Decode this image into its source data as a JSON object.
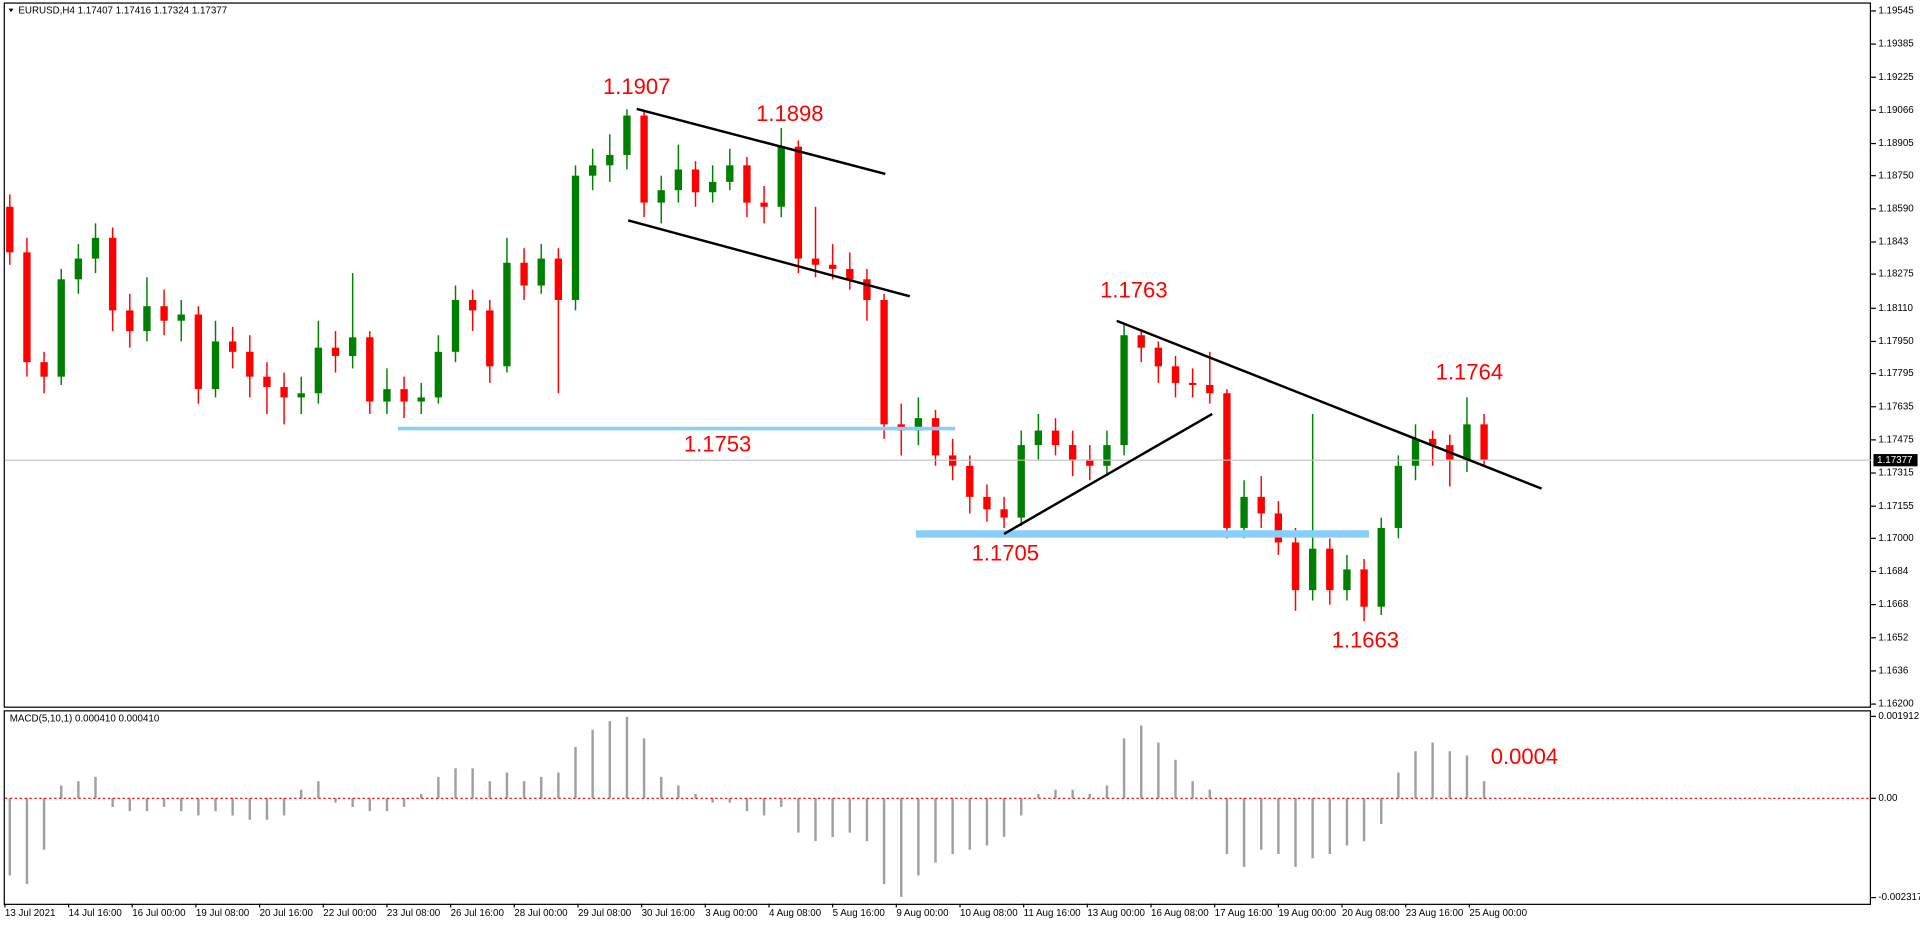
{
  "header": "EURUSD,H4  1.17407 1.17416 1.17324 1.17377",
  "chart_data": [
    {
      "type": "candlestick",
      "up_color": "#008000",
      "down_color": "#ff0000",
      "ylim": [
        1.16188,
        1.19586
      ],
      "yticks": [
        1.19545,
        1.19385,
        1.19225,
        1.19066,
        1.18905,
        {
          "value": 1.1875,
          "label": "1.18750"
        },
        {
          "value": 1.1859,
          "label": "1.18590"
        },
        1.1843,
        1.18275,
        {
          "value": 1.1811,
          "label": "1.18110"
        },
        {
          "value": 1.1795,
          "label": "1.17950"
        },
        1.17795,
        1.17635,
        1.17475,
        1.17315,
        1.17155,
        {
          "value": 1.17,
          "label": "1.17000"
        },
        1.1684,
        1.1668,
        1.1652,
        1.1636,
        {
          "value": 1.162,
          "label": "1.16200"
        }
      ],
      "last_price": 1.17377,
      "annotations": [
        "1.1907",
        "1.1898",
        "1.1753",
        "1.1763",
        "1.1705",
        "1.1764",
        "1.1663"
      ],
      "candles": [
        [
          1.186,
          1.1866,
          1.1832,
          1.1838
        ],
        [
          1.1838,
          1.1845,
          1.1778,
          1.1785
        ],
        [
          1.1785,
          1.179,
          1.177,
          1.1778
        ],
        [
          1.1778,
          1.183,
          1.1774,
          1.1825
        ],
        [
          1.1825,
          1.1842,
          1.1818,
          1.1835
        ],
        [
          1.1835,
          1.1852,
          1.1828,
          1.1845
        ],
        [
          1.1845,
          1.185,
          1.18,
          1.181
        ],
        [
          1.181,
          1.1818,
          1.1792,
          1.18
        ],
        [
          1.18,
          1.1826,
          1.1795,
          1.1812
        ],
        [
          1.1812,
          1.182,
          1.1798,
          1.1805
        ],
        [
          1.1805,
          1.1815,
          1.1795,
          1.1808
        ],
        [
          1.1808,
          1.1812,
          1.1765,
          1.1772
        ],
        [
          1.1772,
          1.1805,
          1.1768,
          1.1795
        ],
        [
          1.1795,
          1.1802,
          1.1782,
          1.179
        ],
        [
          1.179,
          1.1798,
          1.1768,
          1.1778
        ],
        [
          1.1778,
          1.1785,
          1.176,
          1.1773
        ],
        [
          1.1773,
          1.178,
          1.1755,
          1.1768
        ],
        [
          1.1768,
          1.1778,
          1.176,
          1.177
        ],
        [
          1.177,
          1.1805,
          1.1765,
          1.1792
        ],
        [
          1.1792,
          1.18,
          1.178,
          1.1788
        ],
        [
          1.1788,
          1.1828,
          1.1782,
          1.1797
        ],
        [
          1.1797,
          1.18,
          1.176,
          1.1766
        ],
        [
          1.1766,
          1.1782,
          1.176,
          1.1772
        ],
        [
          1.1772,
          1.1778,
          1.1758,
          1.1766
        ],
        [
          1.1766,
          1.1775,
          1.176,
          1.1768
        ],
        [
          1.1768,
          1.1798,
          1.1765,
          1.179
        ],
        [
          1.179,
          1.1822,
          1.1785,
          1.1815
        ],
        [
          1.1815,
          1.182,
          1.18,
          1.181
        ],
        [
          1.181,
          1.1815,
          1.1775,
          1.1783
        ],
        [
          1.1783,
          1.1845,
          1.178,
          1.1833
        ],
        [
          1.1833,
          1.184,
          1.1815,
          1.1822
        ],
        [
          1.1822,
          1.1842,
          1.1818,
          1.1835
        ],
        [
          1.1835,
          1.184,
          1.177,
          1.1815
        ],
        [
          1.1815,
          1.188,
          1.181,
          1.1875
        ],
        [
          1.1875,
          1.1888,
          1.1868,
          1.188
        ],
        [
          1.188,
          1.1895,
          1.1872,
          1.1885
        ],
        [
          1.1885,
          1.1907,
          1.1878,
          1.1904
        ],
        [
          1.1904,
          1.1906,
          1.1855,
          1.1862
        ],
        [
          1.1862,
          1.1875,
          1.1852,
          1.1868
        ],
        [
          1.1868,
          1.189,
          1.1862,
          1.1878
        ],
        [
          1.1878,
          1.1882,
          1.186,
          1.1867
        ],
        [
          1.1867,
          1.188,
          1.1862,
          1.1872
        ],
        [
          1.1872,
          1.1888,
          1.1868,
          1.188
        ],
        [
          1.188,
          1.1884,
          1.1855,
          1.1862
        ],
        [
          1.1862,
          1.187,
          1.1852,
          1.186
        ],
        [
          1.186,
          1.1898,
          1.1855,
          1.1889
        ],
        [
          1.1889,
          1.1892,
          1.1828,
          1.1835
        ],
        [
          1.1835,
          1.186,
          1.1826,
          1.1832
        ],
        [
          1.1832,
          1.1842,
          1.1825,
          1.183
        ],
        [
          1.183,
          1.1838,
          1.182,
          1.1825
        ],
        [
          1.1825,
          1.183,
          1.1805,
          1.1815
        ],
        [
          1.1815,
          1.1818,
          1.1748,
          1.1755
        ],
        [
          1.1755,
          1.1765,
          1.174,
          1.1752
        ],
        [
          1.1752,
          1.1768,
          1.1745,
          1.1758
        ],
        [
          1.1758,
          1.1762,
          1.1735,
          1.174
        ],
        [
          1.174,
          1.1748,
          1.1728,
          1.1735
        ],
        [
          1.1735,
          1.174,
          1.1712,
          1.172
        ],
        [
          1.172,
          1.1726,
          1.1708,
          1.1714
        ],
        [
          1.1714,
          1.172,
          1.1705,
          1.171
        ],
        [
          1.171,
          1.1752,
          1.1706,
          1.1745
        ],
        [
          1.1745,
          1.176,
          1.1738,
          1.1752
        ],
        [
          1.1752,
          1.1758,
          1.174,
          1.1745
        ],
        [
          1.1745,
          1.1752,
          1.173,
          1.1738
        ],
        [
          1.1738,
          1.1745,
          1.1728,
          1.1735
        ],
        [
          1.1735,
          1.1752,
          1.173,
          1.1745
        ],
        [
          1.1745,
          1.1803,
          1.174,
          1.1798
        ],
        [
          1.1798,
          1.18,
          1.1785,
          1.1792
        ],
        [
          1.1792,
          1.1795,
          1.1775,
          1.1783
        ],
        [
          1.1783,
          1.1788,
          1.1768,
          1.1775
        ],
        [
          1.1775,
          1.1782,
          1.1768,
          1.1774
        ],
        [
          1.1774,
          1.179,
          1.1765,
          1.177
        ],
        [
          1.177,
          1.1772,
          1.17,
          1.1705
        ],
        [
          1.1705,
          1.1728,
          1.17,
          1.172
        ],
        [
          1.172,
          1.173,
          1.1705,
          1.1712
        ],
        [
          1.1712,
          1.1718,
          1.1692,
          1.1698
        ],
        [
          1.1698,
          1.1705,
          1.1665,
          1.1675
        ],
        [
          1.1675,
          1.176,
          1.167,
          1.1695
        ],
        [
          1.1695,
          1.17,
          1.1668,
          1.1675
        ],
        [
          1.1675,
          1.1692,
          1.167,
          1.1685
        ],
        [
          1.1685,
          1.169,
          1.166,
          1.1667
        ],
        [
          1.1667,
          1.171,
          1.1663,
          1.1705
        ],
        [
          1.1705,
          1.174,
          1.17,
          1.1735
        ],
        [
          1.1735,
          1.1755,
          1.1728,
          1.1748
        ],
        [
          1.1748,
          1.1752,
          1.1735,
          1.1745
        ],
        [
          1.1745,
          1.175,
          1.1725,
          1.1738
        ],
        [
          1.1738,
          1.1768,
          1.1732,
          1.1755
        ],
        [
          1.1755,
          1.176,
          1.1735,
          1.1738
        ]
      ]
    },
    {
      "type": "bar",
      "title": "MACD(5,10,1) 0.000410 0.000410",
      "color": "#a0a0a0",
      "zero_color": "#ff0000",
      "ylim": [
        -0.00246,
        0.002055
      ],
      "yticks": [
        0.001912,
        {
          "value": 0,
          "label": "0.00"
        },
        -0.002317
      ],
      "annotations": [
        "0.0004"
      ],
      "values": [
        -0.0018,
        -0.002,
        -0.0012,
        0.0003,
        0.0004,
        0.0005,
        -0.0002,
        -0.0003,
        -0.0003,
        -0.0002,
        -0.0003,
        -0.0004,
        -0.0003,
        -0.0004,
        -0.0005,
        -0.0005,
        -0.0004,
        0.0002,
        0.0004,
        -0.0001,
        -0.0002,
        -0.0003,
        -0.0003,
        -0.0002,
        0.0001,
        0.0005,
        0.0007,
        0.0007,
        0.0004,
        0.0006,
        0.0004,
        0.0005,
        0.0006,
        0.0012,
        0.0016,
        0.0018,
        0.0019,
        0.0014,
        0.0005,
        0.0003,
        0.0001,
        -0.0001,
        -0.0001,
        -0.0003,
        -0.0004,
        -0.0002,
        -0.0008,
        -0.001,
        -0.0009,
        -0.0008,
        -0.001,
        -0.002,
        -0.0023,
        -0.0018,
        -0.0015,
        -0.0013,
        -0.0012,
        -0.0011,
        -0.0009,
        -0.0004,
        0.0001,
        0.0002,
        0.0002,
        0.0001,
        0.0003,
        0.0014,
        0.0017,
        0.0013,
        0.0009,
        0.0004,
        0.0002,
        -0.0013,
        -0.0016,
        -0.0012,
        -0.0013,
        -0.0016,
        -0.0014,
        -0.0013,
        -0.0011,
        -0.001,
        -0.0006,
        0.0006,
        0.0011,
        0.0013,
        0.0011,
        0.001,
        0.0004
      ],
      "x_tick_labels": [
        "13 Jul 2021",
        "14 Jul 16:00",
        "16 Jul 00:00",
        "19 Jul 08:00",
        "20 Jul 16:00",
        "22 Jul 00:00",
        "23 Jul 08:00",
        "26 Jul 16:00",
        "28 Jul 00:00",
        "29 Jul 08:00",
        "30 Jul 16:00",
        "3 Aug 00:00",
        "4 Aug 08:00",
        "5 Aug 16:00",
        "9 Aug 00:00",
        "10 Aug 08:00",
        "11 Aug 16:00",
        "13 Aug 00:00",
        "16 Aug 08:00",
        "17 Aug 16:00",
        "19 Aug 00:00",
        "20 Aug 08:00",
        "23 Aug 16:00",
        "25 Aug 00:00"
      ]
    }
  ]
}
